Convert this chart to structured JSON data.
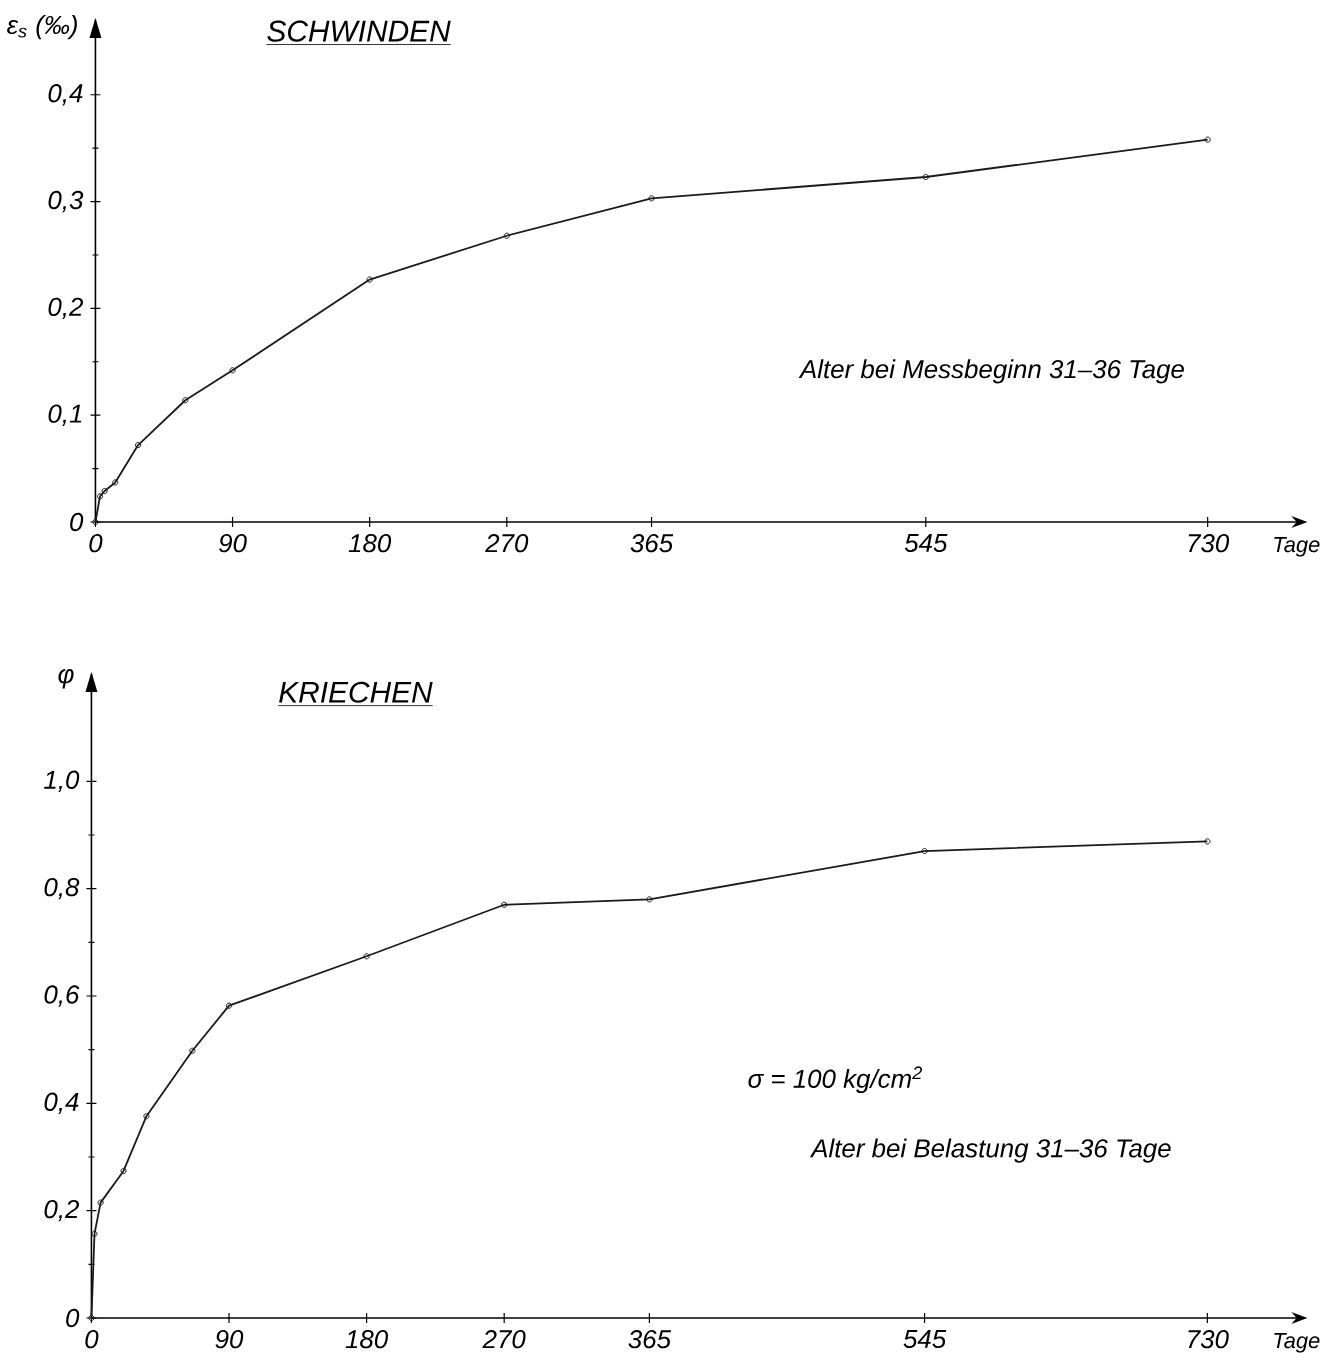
{
  "chart_data": [
    {
      "type": "line",
      "title": "SCHWINDEN",
      "ylabel": "ε$_{s}$ (‰)",
      "xlabel": "Tage",
      "annotations": [
        "Alter bei Messbeginn 31–36 Tage"
      ],
      "x": [
        0,
        3,
        6,
        13,
        28,
        59,
        90,
        180,
        270,
        365,
        545,
        730
      ],
      "series": [
        {
          "color": "#1a1a1a",
          "values": [
            0,
            0.024,
            0.029,
            0.037,
            0.072,
            0.114,
            0.142,
            0.227,
            0.268,
            0.303,
            0.323,
            0.358
          ]
        }
      ],
      "xlim": [
        0,
        785
      ],
      "xticks": [
        0,
        90,
        180,
        270,
        365,
        545,
        730
      ],
      "ylim": [
        0,
        0.47
      ],
      "yticks": [
        0,
        {
          "value": 0.1,
          "label": "0,1"
        },
        {
          "value": 0.2,
          "label": "0,2"
        },
        {
          "value": 0.3,
          "label": "0,3"
        },
        {
          "value": 0.4,
          "label": "0,4"
        }
      ],
      "grid": false,
      "marker": "circle",
      "line_style": "solid"
    },
    {
      "type": "line",
      "title": "KRIECHEN",
      "ylabel": "φ",
      "xlabel": "Tage",
      "annotations": [
        "σ = 100 kg/cm$^{2}$",
        "Alter bei Belastung 31–36 Tage"
      ],
      "x": [
        0,
        2,
        6,
        21,
        36,
        66,
        90,
        180,
        270,
        365,
        545,
        730
      ],
      "series": [
        {
          "color": "#1a1a1a",
          "values": [
            0,
            0.157,
            0.215,
            0.274,
            0.376,
            0.498,
            0.582,
            0.674,
            0.77,
            0.78,
            0.87,
            0.888
          ]
        }
      ],
      "xlim": [
        0,
        785
      ],
      "xticks": [
        0,
        90,
        180,
        270,
        365,
        545,
        730
      ],
      "ylim": [
        0,
        1.2
      ],
      "yticks": [
        0,
        {
          "value": 0.2,
          "label": "0,2"
        },
        {
          "value": 0.4,
          "label": "0,4"
        },
        {
          "value": 0.6,
          "label": "0,6"
        },
        {
          "value": 0.8,
          "label": "0,8"
        },
        {
          "value": 1.0,
          "label": "1,0"
        }
      ],
      "grid": false,
      "marker": "circle",
      "line_style": "solid"
    }
  ]
}
